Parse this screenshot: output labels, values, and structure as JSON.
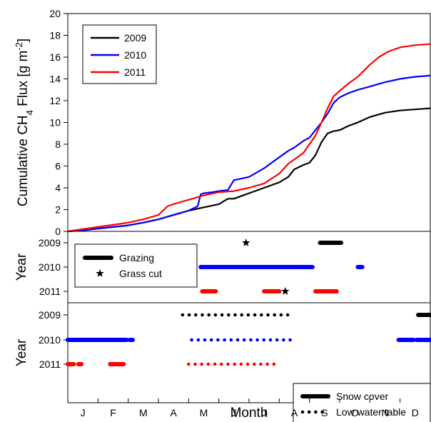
{
  "chart_data": {
    "type": "line",
    "xlabel": "Month",
    "months": [
      "J",
      "F",
      "M",
      "A",
      "M",
      "J",
      "J",
      "A",
      "S",
      "O",
      "N",
      "D"
    ],
    "panels": [
      {
        "id": "flux",
        "type": "line",
        "ylabel": "Cumulative CH",
        "ylabel_sub": "4",
        "ylabel_rest": " Flux [g m",
        "ylabel_sup": "-2",
        "ylabel_end": "]",
        "ylim": [
          0,
          20
        ],
        "yticks": [
          0,
          2,
          4,
          6,
          8,
          10,
          12,
          14,
          16,
          18,
          20
        ],
        "legend": "top-left",
        "series": [
          {
            "name": "2009",
            "color": "#000000",
            "x": [
              0,
              0.5,
              1,
              1.5,
              2,
              2.5,
              3,
              3.5,
              4,
              4.5,
              5,
              5.3,
              5.5,
              5.8,
              6,
              6.5,
              7,
              7.3,
              7.5,
              7.8,
              8,
              8.2,
              8.4,
              8.6,
              8.8,
              9,
              9.3,
              9.6,
              10,
              10.5,
              11,
              11.5,
              12
            ],
            "y": [
              0,
              0.1,
              0.25,
              0.4,
              0.55,
              0.8,
              1.1,
              1.5,
              1.9,
              2.2,
              2.5,
              3.0,
              3.0,
              3.3,
              3.5,
              4.0,
              4.5,
              5.0,
              5.7,
              6.1,
              6.3,
              7.0,
              8.2,
              9.0,
              9.2,
              9.3,
              9.7,
              10.0,
              10.5,
              10.9,
              11.1,
              11.2,
              11.3
            ]
          },
          {
            "name": "2010",
            "color": "#0000ff",
            "x": [
              0,
              0.5,
              1,
              1.5,
              2,
              2.5,
              3,
              3.5,
              4,
              4.3,
              4.4,
              4.5,
              4.8,
              5,
              5.3,
              5.5,
              6,
              6.5,
              7,
              7.3,
              7.5,
              7.8,
              8,
              8.2,
              8.4,
              8.6,
              8.8,
              9,
              9.3,
              9.6,
              10,
              10.5,
              11,
              11.5,
              12
            ],
            "y": [
              0,
              0.1,
              0.25,
              0.4,
              0.55,
              0.8,
              1.1,
              1.5,
              1.9,
              2.3,
              3.4,
              3.5,
              3.6,
              3.7,
              3.8,
              4.7,
              5.0,
              5.8,
              6.8,
              7.4,
              7.7,
              8.3,
              8.6,
              9.3,
              10.0,
              10.8,
              11.8,
              12.3,
              12.7,
              13.0,
              13.3,
              13.7,
              14.0,
              14.2,
              14.3
            ]
          },
          {
            "name": "2011",
            "color": "#ff0000",
            "x": [
              0,
              0.5,
              1,
              1.5,
              2,
              2.5,
              3,
              3.3,
              3.5,
              4,
              4.5,
              5,
              5.5,
              6,
              6.5,
              7,
              7.3,
              7.5,
              7.8,
              8,
              8.2,
              8.4,
              8.6,
              8.8,
              9,
              9.3,
              9.6,
              10,
              10.3,
              10.6,
              11,
              11.5,
              12
            ],
            "y": [
              0,
              0.2,
              0.4,
              0.6,
              0.8,
              1.1,
              1.5,
              2.3,
              2.5,
              2.9,
              3.3,
              3.6,
              3.7,
              4.0,
              4.4,
              5.3,
              6.2,
              6.6,
              7.2,
              8.0,
              8.8,
              10.0,
              11.3,
              12.4,
              12.9,
              13.6,
              14.2,
              15.3,
              16.0,
              16.5,
              16.9,
              17.1,
              17.2
            ]
          }
        ]
      },
      {
        "id": "management",
        "type": "timeline",
        "ylabel": "Year",
        "rows": [
          "2009",
          "2010",
          "2011"
        ],
        "legend": [
          {
            "name": "Grazing",
            "style": "bar"
          },
          {
            "name": "Grass cut",
            "style": "star"
          }
        ],
        "grazing": [
          {
            "row": "2009",
            "start": 8.35,
            "end": 9.05,
            "color": "#000000"
          },
          {
            "row": "2010",
            "start": 4.4,
            "end": 8.1,
            "color": "#0000ff"
          },
          {
            "row": "2010",
            "start": 9.6,
            "end": 9.75,
            "color": "#0000ff"
          },
          {
            "row": "2011",
            "start": 4.45,
            "end": 4.9,
            "color": "#ff0000"
          },
          {
            "row": "2011",
            "start": 6.5,
            "end": 7.0,
            "color": "#ff0000"
          },
          {
            "row": "2011",
            "start": 8.2,
            "end": 8.9,
            "color": "#ff0000"
          }
        ],
        "grass_cut": [
          {
            "row": "2009",
            "x": 5.9
          },
          {
            "row": "2011",
            "x": 7.2
          }
        ]
      },
      {
        "id": "hydrology",
        "type": "timeline",
        "ylabel": "Year",
        "rows": [
          "2009",
          "2010",
          "2011"
        ],
        "legend": [
          {
            "name": "Snow cover",
            "style": "bar"
          },
          {
            "name": "Low water table",
            "style": "dots"
          }
        ],
        "snow_cover": [
          {
            "row": "2009",
            "start": 11.6,
            "end": 12.0,
            "color": "#000000"
          },
          {
            "row": "2010",
            "start": 0.0,
            "end": 1.95,
            "color": "#0000ff"
          },
          {
            "row": "2010",
            "start": 2.05,
            "end": 2.15,
            "color": "#0000ff"
          },
          {
            "row": "2010",
            "start": 10.95,
            "end": 11.45,
            "color": "#0000ff"
          },
          {
            "row": "2010",
            "start": 11.55,
            "end": 12.0,
            "color": "#0000ff"
          },
          {
            "row": "2011",
            "start": 0.0,
            "end": 0.2,
            "color": "#ff0000"
          },
          {
            "row": "2011",
            "start": 0.35,
            "end": 0.45,
            "color": "#ff0000"
          },
          {
            "row": "2011",
            "start": 1.4,
            "end": 1.85,
            "color": "#ff0000"
          }
        ],
        "low_water_table": [
          {
            "row": "2009",
            "start": 3.8,
            "end": 7.4,
            "color": "#000000"
          },
          {
            "row": "2010",
            "start": 4.1,
            "end": 7.4,
            "color": "#0000ff"
          },
          {
            "row": "2011",
            "start": 4.0,
            "end": 7.0,
            "color": "#ff0000"
          }
        ]
      }
    ]
  }
}
